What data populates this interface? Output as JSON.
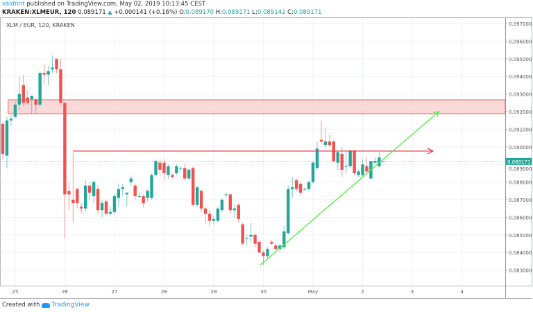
{
  "header": {
    "author": "valdrint",
    "published_text": "published on TradingView.com, May 02, 2019 10:13:45 CEST",
    "symbol": "KRAKEN:XLMEUR, 120",
    "last": "0.089171",
    "change": "+0.000141 (+0.16%)",
    "open_label": "O:",
    "open": "0.089170",
    "high_label": "H:",
    "high": "0.089171",
    "low_label": "L:",
    "low": "0.089142",
    "close_label": "C:",
    "close": "0.089171"
  },
  "chart_legend": "XLM / EUR, 120, KRAKEN",
  "footer": {
    "created_with": "Created with",
    "brand": "TradingView"
  },
  "colors": {
    "up": "#26a69a",
    "down": "#ef5350",
    "zone": "#f8c9c9",
    "zone_border": "#f06262",
    "resistance_line": "#f23645",
    "trend_line": "#4cf03c",
    "grid": "#eef2f6"
  },
  "chart_data": {
    "type": "candlestick",
    "ylim": [
      0.0823,
      0.0973
    ],
    "y_ticks": [
      "0.097000",
      "0.096000",
      "0.095000",
      "0.094000",
      "0.093000",
      "0.092000",
      "0.091000",
      "0.090000",
      "0.089000",
      "0.088000",
      "0.087000",
      "0.086000",
      "0.085000",
      "0.084000",
      "0.083000"
    ],
    "x_ticks": [
      {
        "label": "25",
        "bar": 3
      },
      {
        "label": "26",
        "bar": 15
      },
      {
        "label": "27",
        "bar": 27
      },
      {
        "label": "28",
        "bar": 39
      },
      {
        "label": "29",
        "bar": 51
      },
      {
        "label": "30",
        "bar": 63
      },
      {
        "label": "May",
        "bar": 75
      },
      {
        "label": "2",
        "bar": 87
      },
      {
        "label": "3",
        "bar": 99
      },
      {
        "label": "4",
        "bar": 111
      }
    ],
    "last_price_label": "0.089171",
    "last_price": 0.089171,
    "ohlc": [
      [
        0.0913,
        0.0914,
        0.0893,
        0.0896
      ],
      [
        0.0895,
        0.0917,
        0.0888,
        0.0915
      ],
      [
        0.0915,
        0.0918,
        0.0912,
        0.0916
      ],
      [
        0.0917,
        0.0926,
        0.0916,
        0.0924
      ],
      [
        0.0924,
        0.094,
        0.0921,
        0.093
      ],
      [
        0.0935,
        0.0941,
        0.0923,
        0.0925
      ],
      [
        0.0928,
        0.0932,
        0.0924,
        0.0925
      ],
      [
        0.0927,
        0.0929,
        0.0919,
        0.0929
      ],
      [
        0.0927,
        0.0928,
        0.0919,
        0.0924
      ],
      [
        0.0924,
        0.0943,
        0.0923,
        0.0942
      ],
      [
        0.0942,
        0.0947,
        0.0936,
        0.0941
      ],
      [
        0.0941,
        0.0946,
        0.0935,
        0.0943
      ],
      [
        0.0944,
        0.0952,
        0.0942,
        0.0945
      ],
      [
        0.095,
        0.095,
        0.0942,
        0.0944
      ],
      [
        0.0944,
        0.095,
        0.0924,
        0.0925
      ],
      [
        0.0925,
        0.0925,
        0.0848,
        0.0873
      ],
      [
        0.0875,
        0.088,
        0.0864,
        0.0873
      ],
      [
        0.087,
        0.0897,
        0.0857,
        0.0868
      ],
      [
        0.0876,
        0.0877,
        0.0865,
        0.0868
      ],
      [
        0.0866,
        0.0868,
        0.0862,
        0.0865
      ],
      [
        0.0865,
        0.0881,
        0.0863,
        0.0878
      ],
      [
        0.0878,
        0.088,
        0.087,
        0.0874
      ],
      [
        0.0872,
        0.0881,
        0.0868,
        0.088
      ],
      [
        0.0876,
        0.0878,
        0.0862,
        0.0864
      ],
      [
        0.0864,
        0.087,
        0.086,
        0.0868
      ],
      [
        0.0869,
        0.087,
        0.0861,
        0.0862
      ],
      [
        0.0862,
        0.0866,
        0.0861,
        0.0863
      ],
      [
        0.0863,
        0.0873,
        0.0862,
        0.0872
      ],
      [
        0.0871,
        0.0879,
        0.0866,
        0.0876
      ],
      [
        0.0876,
        0.0879,
        0.0872,
        0.0877
      ],
      [
        0.0873,
        0.0874,
        0.0866,
        0.0874
      ],
      [
        0.088,
        0.0884,
        0.0878,
        0.0882
      ],
      [
        0.0878,
        0.0879,
        0.087,
        0.0872
      ],
      [
        0.0872,
        0.0874,
        0.0871,
        0.0872
      ],
      [
        0.0872,
        0.0873,
        0.0866,
        0.0868
      ],
      [
        0.0871,
        0.0876,
        0.0869,
        0.0875
      ],
      [
        0.0871,
        0.0885,
        0.087,
        0.0884
      ],
      [
        0.0884,
        0.0893,
        0.0883,
        0.0892
      ],
      [
        0.0891,
        0.0893,
        0.0884,
        0.0887
      ],
      [
        0.0891,
        0.0893,
        0.0881,
        0.0885
      ],
      [
        0.0884,
        0.089,
        0.0882,
        0.0889
      ],
      [
        0.0884,
        0.0885,
        0.0882,
        0.0883
      ],
      [
        0.0885,
        0.089,
        0.0884,
        0.0889
      ],
      [
        0.0888,
        0.0889,
        0.0886,
        0.0888
      ],
      [
        0.0888,
        0.089,
        0.0881,
        0.0882
      ],
      [
        0.0882,
        0.0888,
        0.0881,
        0.0887
      ],
      [
        0.0888,
        0.0889,
        0.0866,
        0.0867
      ],
      [
        0.0867,
        0.0878,
        0.0866,
        0.0877
      ],
      [
        0.0875,
        0.0876,
        0.0863,
        0.0865
      ],
      [
        0.0865,
        0.0866,
        0.0856,
        0.0862
      ],
      [
        0.0862,
        0.0864,
        0.0855,
        0.0858
      ],
      [
        0.0858,
        0.0861,
        0.0856,
        0.0859
      ],
      [
        0.0858,
        0.0866,
        0.0857,
        0.0865
      ],
      [
        0.0864,
        0.0871,
        0.0863,
        0.087
      ],
      [
        0.0873,
        0.0874,
        0.0871,
        0.0873
      ],
      [
        0.0873,
        0.0874,
        0.0862,
        0.0864
      ],
      [
        0.0864,
        0.0867,
        0.086,
        0.0865
      ],
      [
        0.0867,
        0.0868,
        0.0857,
        0.0859
      ],
      [
        0.0856,
        0.0857,
        0.0844,
        0.0845
      ],
      [
        0.0848,
        0.085,
        0.0844,
        0.0848
      ],
      [
        0.0849,
        0.0857,
        0.0846,
        0.085
      ],
      [
        0.085,
        0.0851,
        0.0843,
        0.0845
      ],
      [
        0.0846,
        0.0847,
        0.084,
        0.084
      ],
      [
        0.084,
        0.0841,
        0.0833,
        0.0838
      ],
      [
        0.0838,
        0.0843,
        0.0836,
        0.0842
      ],
      [
        0.0846,
        0.0847,
        0.0844,
        0.0845
      ],
      [
        0.0844,
        0.0845,
        0.0841,
        0.0842
      ],
      [
        0.0842,
        0.0845,
        0.084,
        0.0844
      ],
      [
        0.0843,
        0.0855,
        0.0842,
        0.0852
      ],
      [
        0.0851,
        0.0878,
        0.085,
        0.0876
      ],
      [
        0.0876,
        0.0883,
        0.0871,
        0.0877
      ],
      [
        0.0881,
        0.0882,
        0.0875,
        0.0876
      ],
      [
        0.0879,
        0.088,
        0.0873,
        0.0874
      ],
      [
        0.0876,
        0.0877,
        0.0875,
        0.0876
      ],
      [
        0.0876,
        0.0881,
        0.0875,
        0.088
      ],
      [
        0.088,
        0.0892,
        0.0879,
        0.0891
      ],
      [
        0.0888,
        0.0903,
        0.0887,
        0.0899
      ],
      [
        0.0904,
        0.0915,
        0.0902,
        0.0903
      ],
      [
        0.0901,
        0.0911,
        0.0899,
        0.0903
      ],
      [
        0.0903,
        0.0907,
        0.09,
        0.0901
      ],
      [
        0.0903,
        0.0904,
        0.0891,
        0.0892
      ],
      [
        0.0891,
        0.0898,
        0.0887,
        0.0897
      ],
      [
        0.0896,
        0.09,
        0.0883,
        0.0887
      ],
      [
        0.0889,
        0.0898,
        0.0885,
        0.0889
      ],
      [
        0.0889,
        0.0898,
        0.0888,
        0.0898
      ],
      [
        0.0898,
        0.0898,
        0.0884,
        0.0885
      ],
      [
        0.0884,
        0.0887,
        0.0883,
        0.0886
      ],
      [
        0.0884,
        0.0893,
        0.0883,
        0.089
      ],
      [
        0.0889,
        0.0894,
        0.0885,
        0.0886
      ],
      [
        0.0882,
        0.0892,
        0.0882,
        0.0892
      ],
      [
        0.0891,
        0.0894,
        0.089,
        0.0892
      ],
      [
        0.0889,
        0.0897,
        0.0888,
        0.0894
      ],
      [
        0.08917,
        0.08917,
        0.08914,
        0.08917
      ]
    ],
    "annotations": {
      "resistance_zone": {
        "from_bar": 1.3,
        "low": 0.09188,
        "high": 0.09267
      },
      "horizontal_arrow": {
        "from_bar": 17,
        "to_bar": 104,
        "price": 0.08976
      },
      "trend_arrow": {
        "from_bar": 62.3,
        "from_price": 0.0833,
        "to_bar": 105.4,
        "to_price": 0.092
      }
    }
  }
}
